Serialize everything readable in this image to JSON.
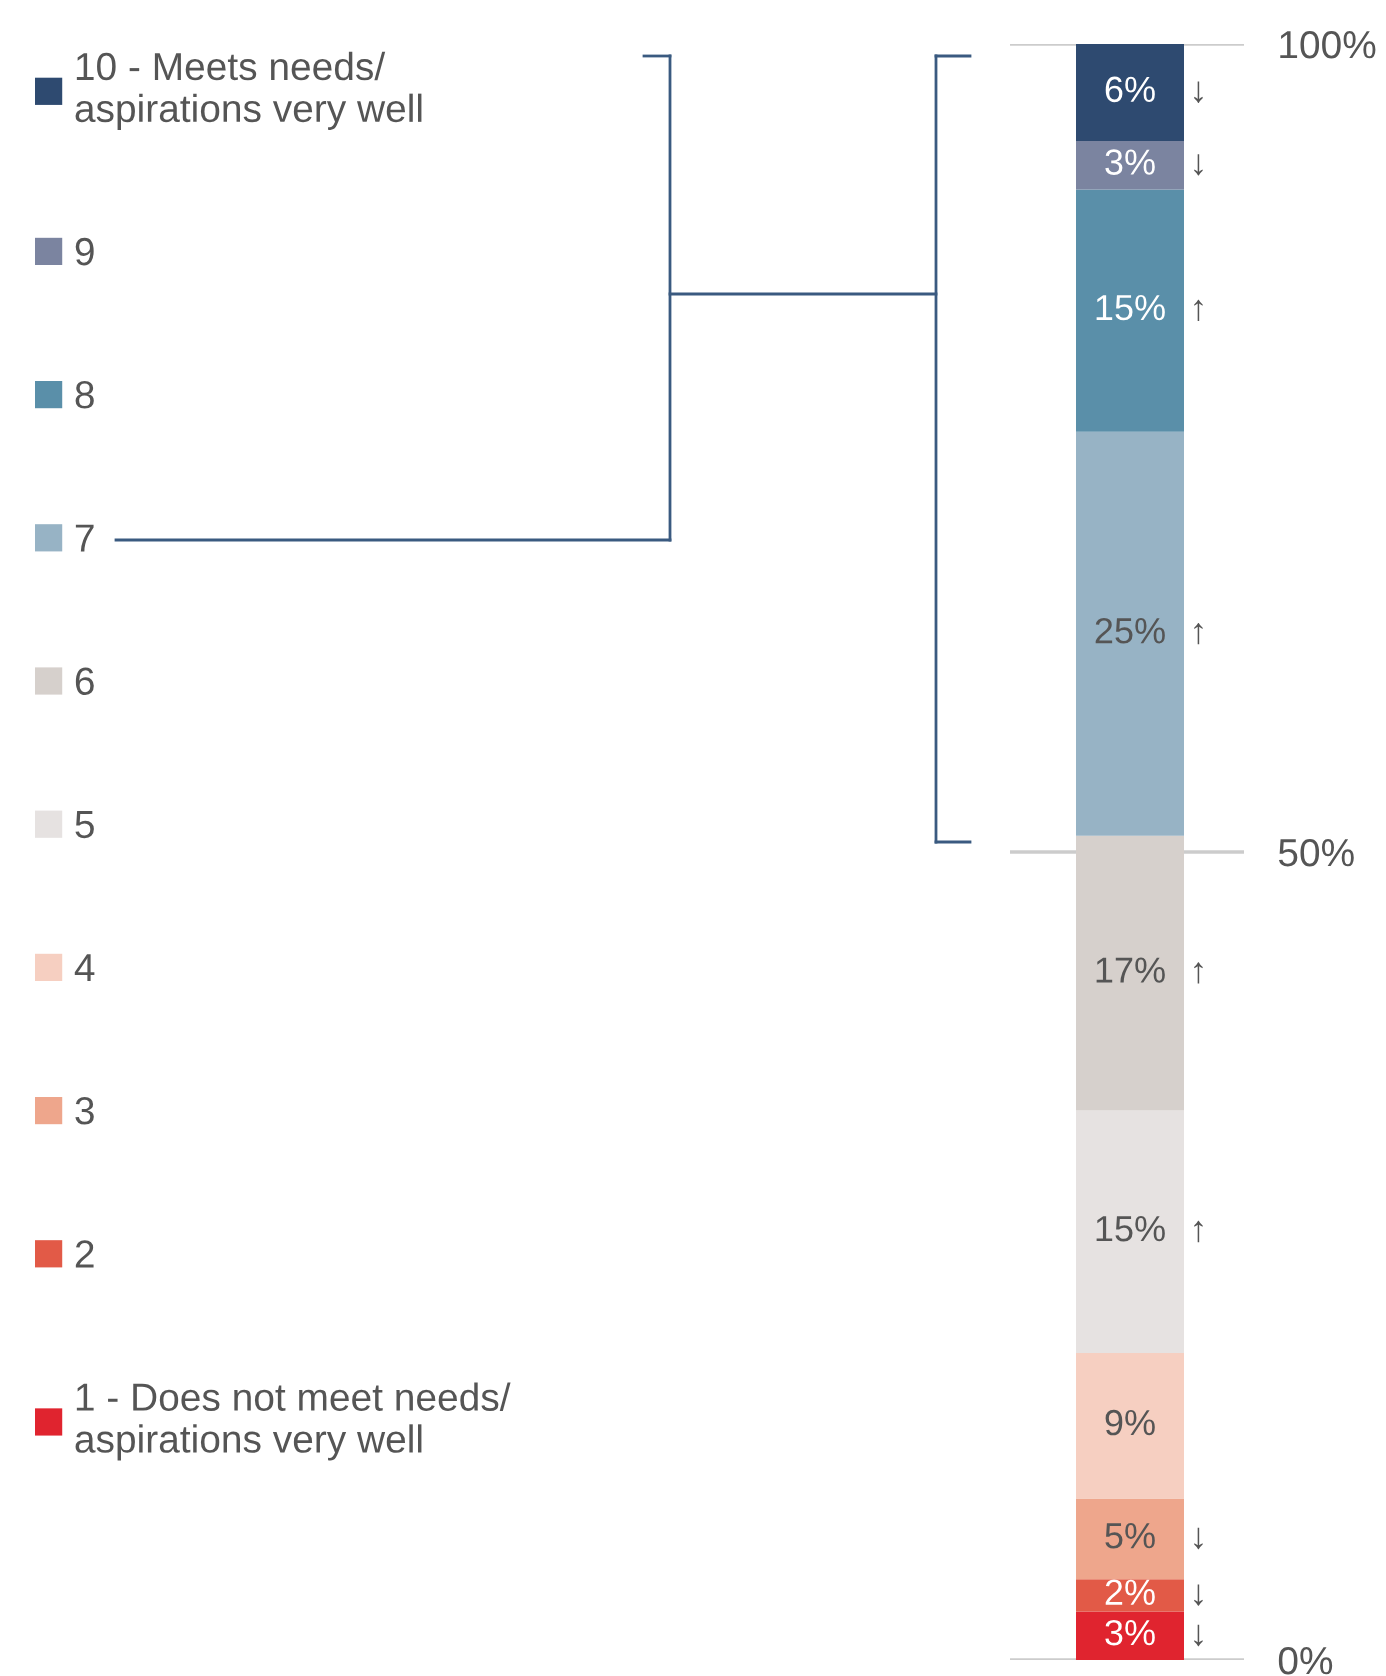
{
  "chart_data": {
    "type": "bar",
    "stacked": true,
    "categories": [
      null
    ],
    "series": [
      {
        "name": "1 - Does not meet needs/\naspirations very well",
        "color": "#e0242f",
        "values": [
          3
        ],
        "value_labels": [
          "3% ↓"
        ]
      },
      {
        "name": "2",
        "color": "#e25a47",
        "values": [
          2
        ],
        "value_labels": [
          "2% ↓"
        ]
      },
      {
        "name": "3",
        "color": "#eea68c",
        "values": [
          5
        ],
        "value_labels": [
          "5% ↓"
        ]
      },
      {
        "name": "4",
        "color": "#f6cfc1",
        "values": [
          9
        ],
        "value_labels": [
          "9%"
        ]
      },
      {
        "name": "5",
        "color": "#e6e2e1",
        "values": [
          15
        ],
        "value_labels": [
          "15% ↑"
        ]
      },
      {
        "name": "6",
        "color": "#d6d0cc",
        "values": [
          17
        ],
        "value_labels": [
          "17% ↑"
        ]
      },
      {
        "name": "7",
        "color": "#97b3c5",
        "values": [
          25
        ],
        "value_labels": [
          "25% ↑"
        ]
      },
      {
        "name": "8",
        "color": "#5a8fa9",
        "values": [
          15
        ],
        "value_labels": [
          "15% ↑"
        ]
      },
      {
        "name": "9",
        "color": "#7b84a0",
        "values": [
          3
        ],
        "value_labels": [
          "3% ↓"
        ]
      },
      {
        "name": "10 - Meets needs/\naspirations very well",
        "color": "#2e4a70",
        "values": [
          6
        ],
        "value_labels": [
          "6% ↓"
        ]
      }
    ],
    "ylim": [
      0,
      100
    ],
    "yticks": [
      {
        "value": 0,
        "label": "0%"
      },
      {
        "value": 50,
        "label": "50%"
      },
      {
        "value": 100,
        "label": "100%"
      }
    ],
    "grid": "y",
    "legend": "left"
  }
}
